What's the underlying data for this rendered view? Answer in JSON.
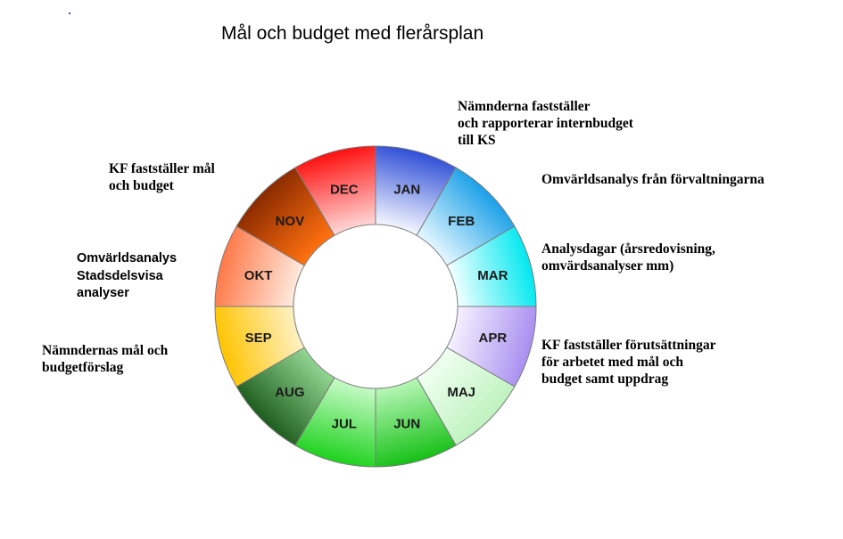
{
  "title": "Mål och budget med flerårsplan",
  "wheel": {
    "segments": [
      {
        "label": "JAN",
        "c1": "#2f4fd6",
        "c2": "#f2f4ff"
      },
      {
        "label": "FEB",
        "c1": "#1aa0e8",
        "c2": "#e2f6ff"
      },
      {
        "label": "MAR",
        "c1": "#00e8f0",
        "c2": "#eeffff"
      },
      {
        "label": "APR",
        "c1": "#a98ef0",
        "c2": "#f4efff"
      },
      {
        "label": "MAJ",
        "c1": "#bff2bf",
        "c2": "#effff0"
      },
      {
        "label": "JUN",
        "c1": "#16c016",
        "c2": "#b4f6b4"
      },
      {
        "label": "JUL",
        "c1": "#1ed21e",
        "c2": "#c4fac4"
      },
      {
        "label": "AUG",
        "c1": "#1e5c1e",
        "c2": "#90d490"
      },
      {
        "label": "SEP",
        "c1": "#ffc400",
        "c2": "#fff0c0"
      },
      {
        "label": "OKT",
        "c1": "#ff7848",
        "c2": "#ffe8dc"
      },
      {
        "label": "NOV",
        "c1": "#8a2a00",
        "c2": "#ff7010"
      },
      {
        "label": "DEC",
        "c1": "#ff1010",
        "c2": "#ffd4d4"
      }
    ]
  },
  "annotations": {
    "namnderna_faststaller": "Nämnderna fastställer\noch rapporterar internbudget\ntill KS",
    "omvarldsanalys_forvaltningarna": "Omvärldsanalys från förvaltningarna",
    "analysdagar": "Analysdagar (årsredovisning,\nomvärdsanalyser  mm)",
    "kf_forutsattningar": "KF fastställer förutsättningar\nför arbetet med mål och\nbudget samt uppdrag",
    "namndernas_mal": "Nämndernas mål och\nbudgetförslag",
    "omvarldsanalys_stadsdelsvisa": "Omvärldsanalys\nStadsdelsvisa\nanalyser",
    "kf_mal_budget": "KF fastställer mål\noch budget"
  }
}
